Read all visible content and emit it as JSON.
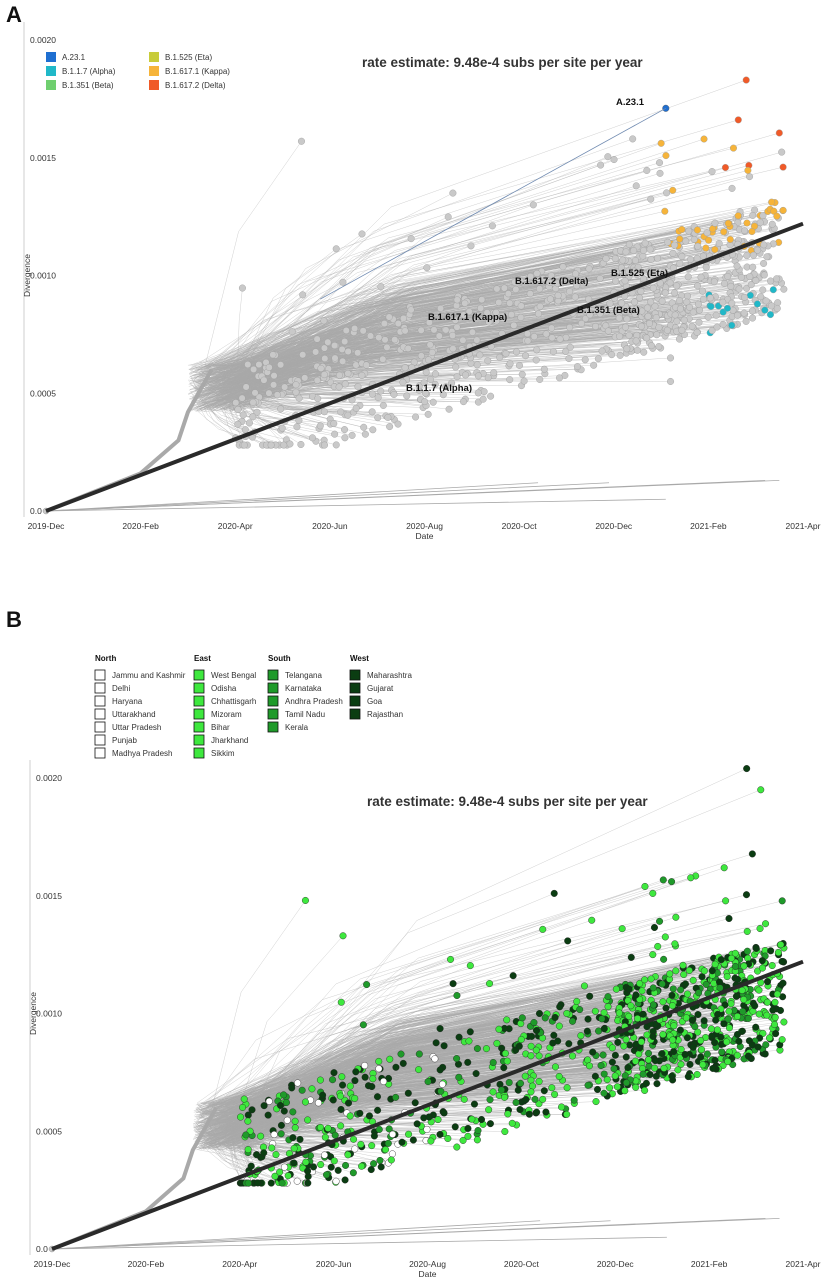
{
  "chart_data": [
    {
      "panel": "A",
      "type": "scatter",
      "title": "rate estimate: 9.48e-4 subs per site per year",
      "xlabel": "Date",
      "ylabel": "Divergence",
      "x_ticks": [
        "2019-Dec",
        "2020-Feb",
        "2020-Apr",
        "2020-Jun",
        "2020-Aug",
        "2020-Oct",
        "2020-Dec",
        "2021-Feb",
        "2021-Apr"
      ],
      "y_ticks": [
        "0.0",
        "0.0005",
        "0.0010",
        "0.0015",
        "0.0020"
      ],
      "ylim": [
        0,
        0.002
      ],
      "regression": {
        "start": [
          "2019-Dec",
          0.0
        ],
        "end": [
          "2021-Apr",
          0.00122
        ]
      },
      "legend": [
        {
          "label": "A.23.1",
          "color": "#1f6fd1"
        },
        {
          "label": "B.1.1.7 (Alpha)",
          "color": "#20b8c8"
        },
        {
          "label": "B.1.351 (Beta)",
          "color": "#6fcf6f"
        },
        {
          "label": "B.1.525 (Eta)",
          "color": "#c8cc3a"
        },
        {
          "label": "B.1.617.1 (Kappa)",
          "color": "#f6b43a"
        },
        {
          "label": "B.1.617.2 (Delta)",
          "color": "#f05a28"
        }
      ],
      "annotations": [
        {
          "label": "A.23.1",
          "x": "2021-Jan",
          "y": 0.00171
        },
        {
          "label": "B.1.525 (Eta)",
          "x": "2020-Dec",
          "y": 0.001
        },
        {
          "label": "B.1.617.2 (Delta)",
          "x": "2020-Sep",
          "y": 0.00098
        },
        {
          "label": "B.1.351 (Beta)",
          "x": "2020-Nov",
          "y": 0.00085
        },
        {
          "label": "B.1.617.1 (Kappa)",
          "x": "2020-Jul",
          "y": 0.00083
        },
        {
          "label": "B.1.1.7 (Alpha)",
          "x": "2020-Jul",
          "y": 0.00053
        }
      ]
    },
    {
      "panel": "B",
      "type": "scatter",
      "title": "rate estimate: 9.48e-4 subs per site per year",
      "xlabel": "Date",
      "ylabel": "Divergence",
      "x_ticks": [
        "2019-Dec",
        "2020-Feb",
        "2020-Apr",
        "2020-Jun",
        "2020-Aug",
        "2020-Oct",
        "2020-Dec",
        "2021-Feb",
        "2021-Apr"
      ],
      "y_ticks": [
        "0.0",
        "0.0005",
        "0.0010",
        "0.0015",
        "0.0020"
      ],
      "ylim": [
        0,
        0.002
      ],
      "regression": {
        "start": [
          "2019-Dec",
          0.0
        ],
        "end": [
          "2021-Apr",
          0.00122
        ]
      },
      "legend_groups": [
        {
          "region": "North",
          "color": "#ffffff",
          "states": [
            "Jammu and Kashmir",
            "Delhi",
            "Haryana",
            "Uttarakhand",
            "Uttar Pradesh",
            "Punjab",
            "Madhya Pradesh"
          ]
        },
        {
          "region": "East",
          "color": "#3ee83e",
          "states": [
            "West Bengal",
            "Odisha",
            "Chhattisgarh",
            "Mizoram",
            "Bihar",
            "Jharkhand",
            "Sikkim"
          ]
        },
        {
          "region": "South",
          "color": "#1f9a2a",
          "states": [
            "Telangana",
            "Karnataka",
            "Andhra Pradesh",
            "Tamil Nadu",
            "Kerala"
          ]
        },
        {
          "region": "West",
          "color": "#0b3d12",
          "states": [
            "Maharashtra",
            "Gujarat",
            "Goa",
            "Rajasthan"
          ]
        }
      ]
    }
  ],
  "panel_labels": {
    "a": "A",
    "b": "B"
  },
  "colors": {
    "branch": "#a9a9a9",
    "tip": "#c9c9c9",
    "regression": "#2a2a2a"
  }
}
